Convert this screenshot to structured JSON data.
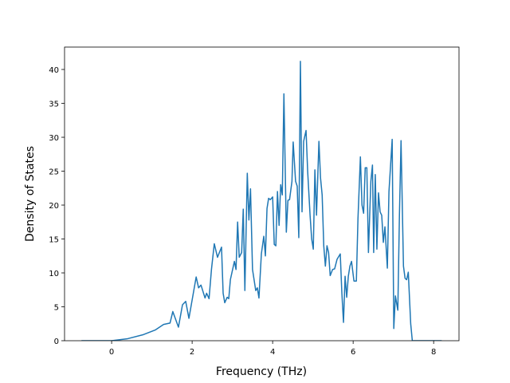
{
  "chart_data": {
    "type": "line",
    "xlabel": "Frequency (THz)",
    "ylabel": "Density of States",
    "xlim": [
      -1.17,
      8.63
    ],
    "ylim": [
      0,
      43.3
    ],
    "xticks": [
      0,
      2,
      4,
      6,
      8
    ],
    "yticks": [
      0,
      5,
      10,
      15,
      20,
      25,
      30,
      35,
      40
    ],
    "x": [
      -0.75,
      0,
      0.4,
      0.79,
      1.09,
      1.29,
      1.45,
      1.52,
      1.66,
      1.76,
      1.84,
      1.92,
      2.1,
      2.16,
      2.22,
      2.32,
      2.36,
      2.42,
      2.48,
      2.55,
      2.63,
      2.73,
      2.77,
      2.81,
      2.87,
      2.91,
      2.95,
      3.05,
      3.09,
      3.13,
      3.17,
      3.23,
      3.27,
      3.31,
      3.37,
      3.41,
      3.45,
      3.5,
      3.58,
      3.62,
      3.66,
      3.72,
      3.78,
      3.82,
      3.86,
      3.9,
      3.94,
      4.0,
      4.04,
      4.08,
      4.12,
      4.16,
      4.2,
      4.24,
      4.28,
      4.34,
      4.38,
      4.42,
      4.48,
      4.51,
      4.57,
      4.61,
      4.65,
      4.69,
      4.73,
      4.77,
      4.83,
      4.87,
      4.93,
      4.97,
      5.01,
      5.05,
      5.09,
      5.15,
      5.19,
      5.23,
      5.27,
      5.31,
      5.35,
      5.39,
      5.43,
      5.49,
      5.54,
      5.6,
      5.68,
      5.72,
      5.76,
      5.8,
      5.84,
      5.88,
      5.92,
      5.96,
      6.02,
      6.08,
      6.12,
      6.18,
      6.22,
      6.26,
      6.3,
      6.34,
      6.38,
      6.44,
      6.48,
      6.51,
      6.55,
      6.59,
      6.63,
      6.67,
      6.71,
      6.75,
      6.79,
      6.85,
      6.89,
      6.97,
      7.01,
      7.05,
      7.11,
      7.15,
      7.19,
      7.25,
      7.29,
      7.33,
      7.37,
      7.43,
      7.47,
      8.2
    ],
    "series": [
      {
        "color": "#1f77b4",
        "values": [
          0,
          0,
          0.3,
          0.9,
          1.6,
          2.4,
          2.6,
          4.3,
          2.0,
          5.3,
          5.8,
          3.3,
          9.4,
          7.8,
          8.2,
          6.3,
          7.0,
          6.2,
          10.5,
          14.3,
          12.3,
          13.8,
          7.0,
          5.6,
          6.4,
          6.2,
          9.0,
          11.7,
          10.5,
          17.5,
          12.3,
          13.0,
          19.4,
          7.4,
          24.7,
          17.8,
          22.4,
          10.5,
          7.4,
          7.8,
          6.3,
          12.8,
          15.4,
          12.5,
          19.5,
          21.0,
          20.8,
          21.2,
          14.2,
          14.0,
          22.0,
          17.0,
          23.0,
          21.5,
          36.4,
          16.0,
          20.7,
          20.8,
          23.5,
          29.3,
          23.5,
          22.8,
          15.2,
          41.2,
          19.0,
          29.4,
          31.0,
          25.0,
          18.5,
          15.0,
          13.5,
          25.2,
          18.5,
          29.4,
          24.0,
          21.5,
          14.0,
          11.0,
          14.0,
          13.0,
          9.6,
          10.5,
          10.6,
          12.0,
          12.8,
          7.0,
          2.7,
          9.5,
          6.4,
          9.5,
          11.0,
          11.7,
          8.8,
          8.8,
          18.0,
          27.1,
          20.0,
          18.8,
          25.5,
          25.5,
          13.0,
          23.5,
          25.9,
          13.0,
          24.5,
          13.5,
          21.8,
          19.0,
          18.5,
          14.5,
          16.8,
          10.7,
          22.0,
          29.7,
          1.8,
          6.6,
          4.5,
          18.5,
          29.5,
          11.0,
          9.2,
          9.0,
          10.1,
          2.5,
          0,
          0
        ]
      }
    ]
  }
}
